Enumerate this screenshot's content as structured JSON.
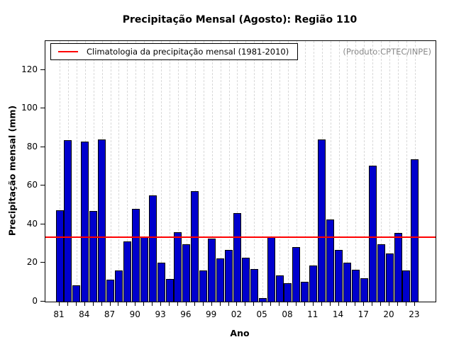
{
  "title": "Precipitação Mensal (Agosto): Região 110",
  "legend": {
    "label": "Climatologia da precipitação mensal (1981-2010)"
  },
  "watermark": "(Produto:CPTEC/INPE)",
  "chart_data": {
    "type": "bar",
    "title": "Precipitação Mensal (Agosto): Região 110",
    "xlabel": "Ano",
    "ylabel": "Precipitação mensal (mm)",
    "ylim": [
      0,
      135
    ],
    "yticks": [
      0,
      20,
      40,
      60,
      80,
      100,
      120
    ],
    "grid": "vertical-dashed",
    "legend_position": "top-left",
    "annotation": "(Produto:CPTEC/INPE)",
    "bar_color": "#0000CD",
    "climatology_color": "#ff0000",
    "climatology_value": 33.2,
    "x_label_every": 3,
    "years": [
      1981,
      1982,
      1983,
      1984,
      1985,
      1986,
      1987,
      1988,
      1989,
      1990,
      1991,
      1992,
      1993,
      1994,
      1995,
      1996,
      1997,
      1998,
      1999,
      2000,
      2001,
      2002,
      2003,
      2004,
      2005,
      2006,
      2007,
      2008,
      2009,
      2010,
      2011,
      2012,
      2013,
      2014,
      2015,
      2016,
      2017,
      2018,
      2019,
      2020,
      2021,
      2022,
      2023
    ],
    "x_tick_labels": [
      "81",
      "",
      "",
      "84",
      "",
      "",
      "87",
      "",
      "",
      "90",
      "",
      "",
      "93",
      "",
      "",
      "96",
      "",
      "",
      "99",
      "",
      "",
      "02",
      "",
      "",
      "05",
      "",
      "",
      "08",
      "",
      "",
      "11",
      "",
      "",
      "14",
      "",
      "",
      "17",
      "",
      "",
      "20",
      "",
      "",
      "23"
    ],
    "values": [
      47.5,
      83.5,
      8.6,
      83.0,
      46.8,
      84.0,
      11.4,
      16.0,
      31.0,
      48.0,
      33.2,
      55.0,
      20.3,
      11.6,
      36.0,
      29.6,
      57.3,
      16.2,
      32.8,
      22.5,
      26.9,
      45.9,
      22.9,
      16.8,
      2.0,
      33.9,
      13.4,
      9.4,
      28.2,
      10.4,
      18.6,
      84.0,
      42.5,
      26.7,
      20.0,
      16.4,
      12.0,
      70.5,
      29.6,
      25.0,
      35.5,
      16.0,
      73.8
    ]
  }
}
